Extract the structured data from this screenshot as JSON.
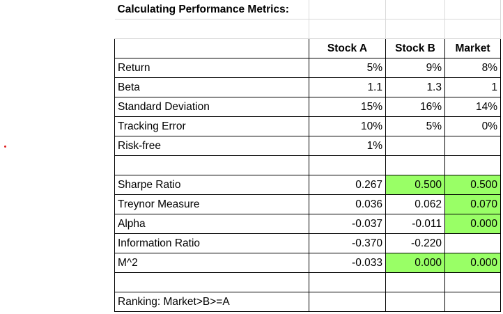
{
  "sheet": {
    "title": "Calculating Performance Metrics:",
    "headers": [
      "Stock A",
      "Stock B",
      "Market"
    ],
    "inputs": [
      {
        "label": "Return",
        "a": "5%",
        "b": "9%",
        "m": "8%"
      },
      {
        "label": "Beta",
        "a": "1.1",
        "b": "1.3",
        "m": "1"
      },
      {
        "label": "Standard Deviation",
        "a": "15%",
        "b": "16%",
        "m": "14%"
      },
      {
        "label": "Tracking Error",
        "a": "10%",
        "b": "5%",
        "m": "0%"
      },
      {
        "label": "Risk-free",
        "a": "1%",
        "b": "",
        "m": ""
      }
    ],
    "metrics": [
      {
        "label": "Sharpe Ratio",
        "a": "0.267",
        "b": "0.500",
        "m": "0.500"
      },
      {
        "label": "Treynor Measure",
        "a": "0.036",
        "b": "0.062",
        "m": "0.070"
      },
      {
        "label": "Alpha",
        "a": "-0.037",
        "b": "-0.011",
        "m": "0.000"
      },
      {
        "label": "Information Ratio",
        "a": "-0.370",
        "b": "-0.220",
        "m": ""
      },
      {
        "label": "M^2",
        "a": "-0.033",
        "b": "0.000",
        "m": "0.000"
      }
    ],
    "ranking": "Ranking: Market>B>=A",
    "highlight_color": "#99ff66"
  }
}
